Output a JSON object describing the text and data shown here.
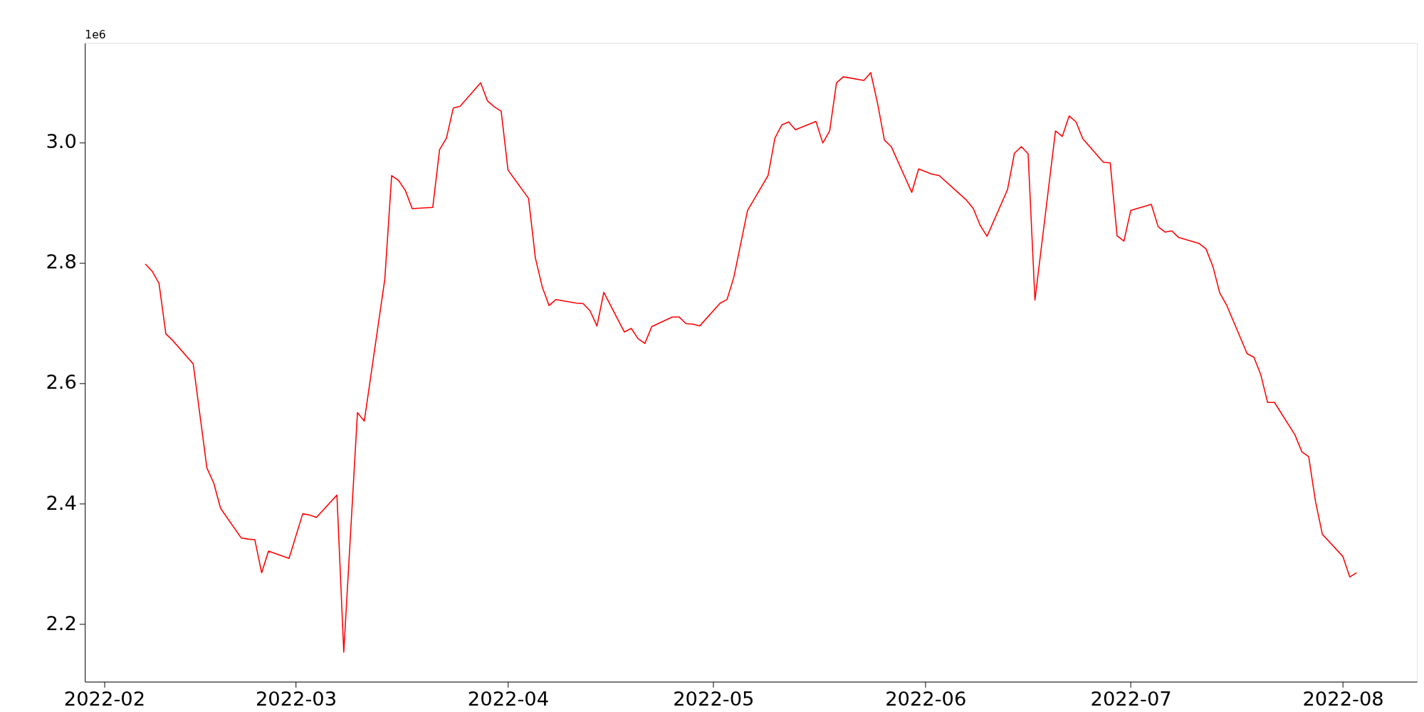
{
  "chart_data": {
    "type": "line",
    "annotations": [
      "1e6"
    ],
    "x": [
      "2022-02-07",
      "2022-02-08",
      "2022-02-09",
      "2022-02-10",
      "2022-02-11",
      "2022-02-14",
      "2022-02-16",
      "2022-02-17",
      "2022-02-18",
      "2022-02-21",
      "2022-02-22",
      "2022-02-23",
      "2022-02-24",
      "2022-02-25",
      "2022-02-28",
      "2022-03-02",
      "2022-03-03",
      "2022-03-04",
      "2022-03-07",
      "2022-03-08",
      "2022-03-10",
      "2022-03-11",
      "2022-03-14",
      "2022-03-15",
      "2022-03-16",
      "2022-03-17",
      "2022-03-18",
      "2022-03-21",
      "2022-03-22",
      "2022-03-23",
      "2022-03-24",
      "2022-03-25",
      "2022-03-28",
      "2022-03-29",
      "2022-03-30",
      "2022-03-31",
      "2022-04-01",
      "2022-04-04",
      "2022-04-05",
      "2022-04-06",
      "2022-04-07",
      "2022-04-08",
      "2022-04-11",
      "2022-04-12",
      "2022-04-13",
      "2022-04-14",
      "2022-04-15",
      "2022-04-18",
      "2022-04-19",
      "2022-04-20",
      "2022-04-21",
      "2022-04-22",
      "2022-04-25",
      "2022-04-26",
      "2022-04-27",
      "2022-04-28",
      "2022-04-29",
      "2022-05-02",
      "2022-05-03",
      "2022-05-04",
      "2022-05-06",
      "2022-05-09",
      "2022-05-10",
      "2022-05-11",
      "2022-05-12",
      "2022-05-13",
      "2022-05-16",
      "2022-05-17",
      "2022-05-18",
      "2022-05-19",
      "2022-05-20",
      "2022-05-23",
      "2022-05-24",
      "2022-05-25",
      "2022-05-26",
      "2022-05-27",
      "2022-05-30",
      "2022-05-31",
      "2022-06-02",
      "2022-06-03",
      "2022-06-07",
      "2022-06-08",
      "2022-06-09",
      "2022-06-10",
      "2022-06-13",
      "2022-06-14",
      "2022-06-15",
      "2022-06-16",
      "2022-06-17",
      "2022-06-20",
      "2022-06-21",
      "2022-06-22",
      "2022-06-23",
      "2022-06-24",
      "2022-06-27",
      "2022-06-28",
      "2022-06-29",
      "2022-06-30",
      "2022-07-01",
      "2022-07-04",
      "2022-07-05",
      "2022-07-06",
      "2022-07-07",
      "2022-07-08",
      "2022-07-11",
      "2022-07-12",
      "2022-07-13",
      "2022-07-14",
      "2022-07-15",
      "2022-07-18",
      "2022-07-19",
      "2022-07-20",
      "2022-07-21",
      "2022-07-22",
      "2022-07-25",
      "2022-07-26",
      "2022-07-27",
      "2022-07-28",
      "2022-07-29",
      "2022-08-01",
      "2022-08-02",
      "2022-08-03"
    ],
    "series": [
      {
        "color": "#ff0000",
        "values": [
          2.798,
          2.786,
          2.766,
          2.682,
          2.671,
          2.632,
          2.459,
          2.434,
          2.392,
          2.343,
          2.341,
          2.34,
          2.285,
          2.321,
          2.309,
          2.383,
          2.381,
          2.377,
          2.414,
          2.153,
          2.551,
          2.537,
          2.773,
          2.945,
          2.937,
          2.92,
          2.89,
          2.892,
          2.988,
          3.007,
          3.057,
          3.06,
          3.099,
          3.069,
          3.059,
          3.052,
          2.954,
          2.907,
          2.808,
          2.76,
          2.729,
          2.739,
          2.733,
          2.732,
          2.72,
          2.695,
          2.751,
          2.685,
          2.691,
          2.674,
          2.666,
          2.694,
          2.71,
          2.71,
          2.699,
          2.698,
          2.695,
          2.733,
          2.739,
          2.776,
          2.887,
          2.945,
          3.007,
          3.029,
          3.034,
          3.021,
          3.035,
          2.999,
          3.019,
          3.099,
          3.109,
          3.103,
          3.116,
          3.065,
          3.004,
          2.993,
          2.917,
          2.956,
          2.947,
          2.945,
          2.904,
          2.89,
          2.862,
          2.844,
          2.922,
          2.982,
          2.993,
          2.981,
          2.738,
          3.019,
          3.01,
          3.044,
          3.034,
          3.006,
          2.967,
          2.966,
          2.845,
          2.836,
          2.887,
          2.897,
          2.86,
          2.851,
          2.853,
          2.842,
          2.832,
          2.823,
          2.794,
          2.75,
          2.73,
          2.649,
          2.643,
          2.614,
          2.568,
          2.568,
          2.514,
          2.486,
          2.478,
          2.403,
          2.349,
          2.312,
          2.278,
          2.285
        ]
      }
    ],
    "xlim": [
      "2022-01-29T04:00",
      "2022-08-11T20:00"
    ],
    "xticks": [
      {
        "value": "2022-02-01",
        "label": "2022-02"
      },
      {
        "value": "2022-03-01",
        "label": "2022-03"
      },
      {
        "value": "2022-04-01",
        "label": "2022-04"
      },
      {
        "value": "2022-05-01",
        "label": "2022-05"
      },
      {
        "value": "2022-06-01",
        "label": "2022-06"
      },
      {
        "value": "2022-07-01",
        "label": "2022-07"
      },
      {
        "value": "2022-08-01",
        "label": "2022-08"
      }
    ],
    "ylim": [
      2.104,
      3.165
    ],
    "yticks": [
      2.2,
      2.4,
      2.6,
      2.8,
      {
        "value": 3.0,
        "label": "3.0"
      }
    ],
    "grid": false,
    "line_style": "solid"
  }
}
